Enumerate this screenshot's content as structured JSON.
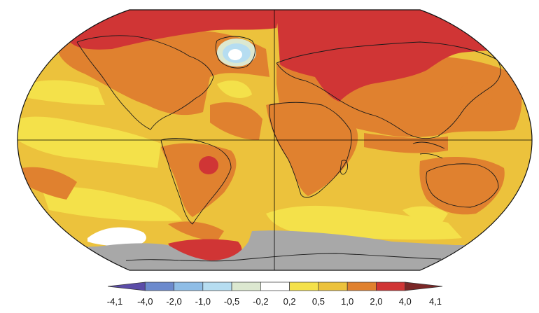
{
  "map": {
    "projection": "robinson",
    "ocean_base_color": "#ECC23C",
    "no_data_color": "#A8A8A8",
    "coastline_color": "#1a1a1a",
    "graticule_color": "#000000"
  },
  "legend": {
    "colors": [
      "#5B4CA8",
      "#6C8ACD",
      "#8FBDE6",
      "#B6DDF1",
      "#DCE8D0",
      "#FFFFFF",
      "#F4E14A",
      "#ECC23C",
      "#E0812F",
      "#D03535",
      "#7A2727"
    ],
    "tick_labels": [
      "-4,1",
      "-4,0",
      "-2,0",
      "-1,0",
      "-0,5",
      "-0,2",
      "0,2",
      "0,5",
      "1,0",
      "2,0",
      "4,0",
      "4,1"
    ]
  }
}
